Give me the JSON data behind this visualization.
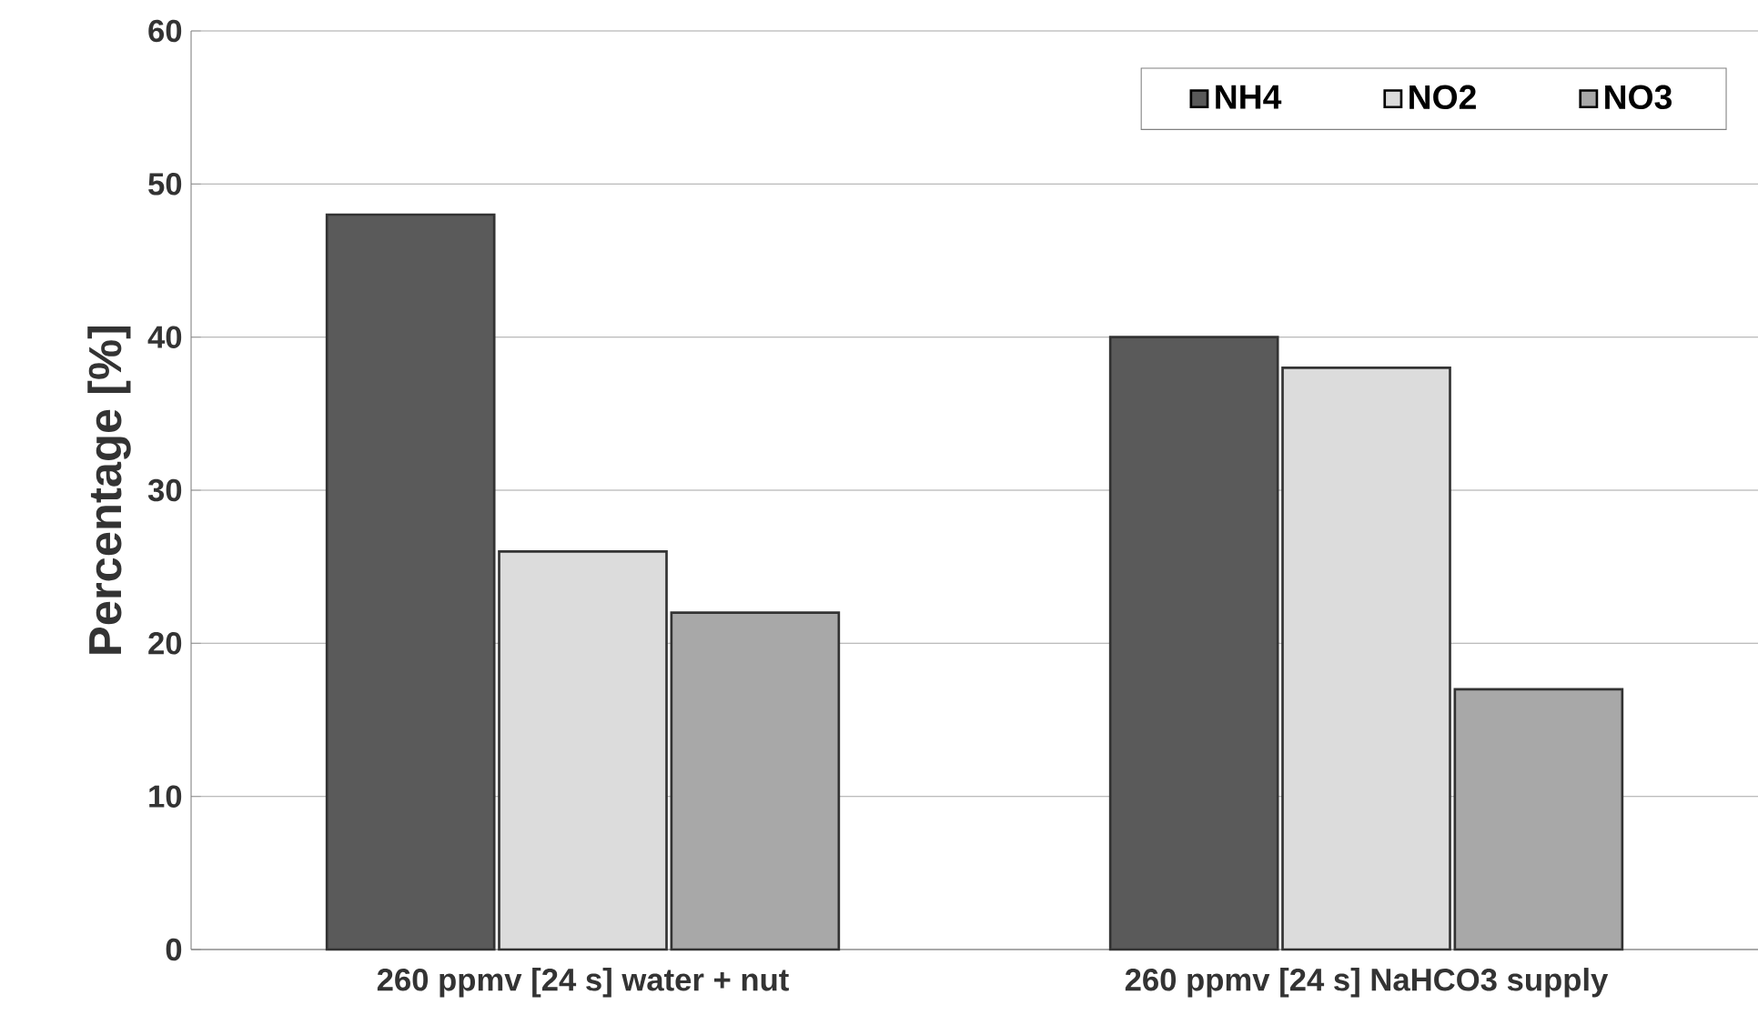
{
  "chart_data": {
    "type": "bar",
    "ylabel": "Percentage [%]",
    "categories": [
      "260 ppmv [24 s] water + nut",
      "260 ppmv [24 s] NaHCO3 supply"
    ],
    "series": [
      {
        "name": "NH4",
        "color": "#5a5a5a",
        "values": [
          48,
          40
        ]
      },
      {
        "name": "NO2",
        "color": "#dcdcdc",
        "values": [
          26,
          38
        ]
      },
      {
        "name": "NO3",
        "color": "#a8a8a8",
        "values": [
          22,
          17
        ]
      }
    ],
    "ylim": [
      0,
      60
    ],
    "yticks": [
      0,
      10,
      20,
      30,
      40,
      50,
      60
    ],
    "grid": "y",
    "legend": "top right"
  }
}
